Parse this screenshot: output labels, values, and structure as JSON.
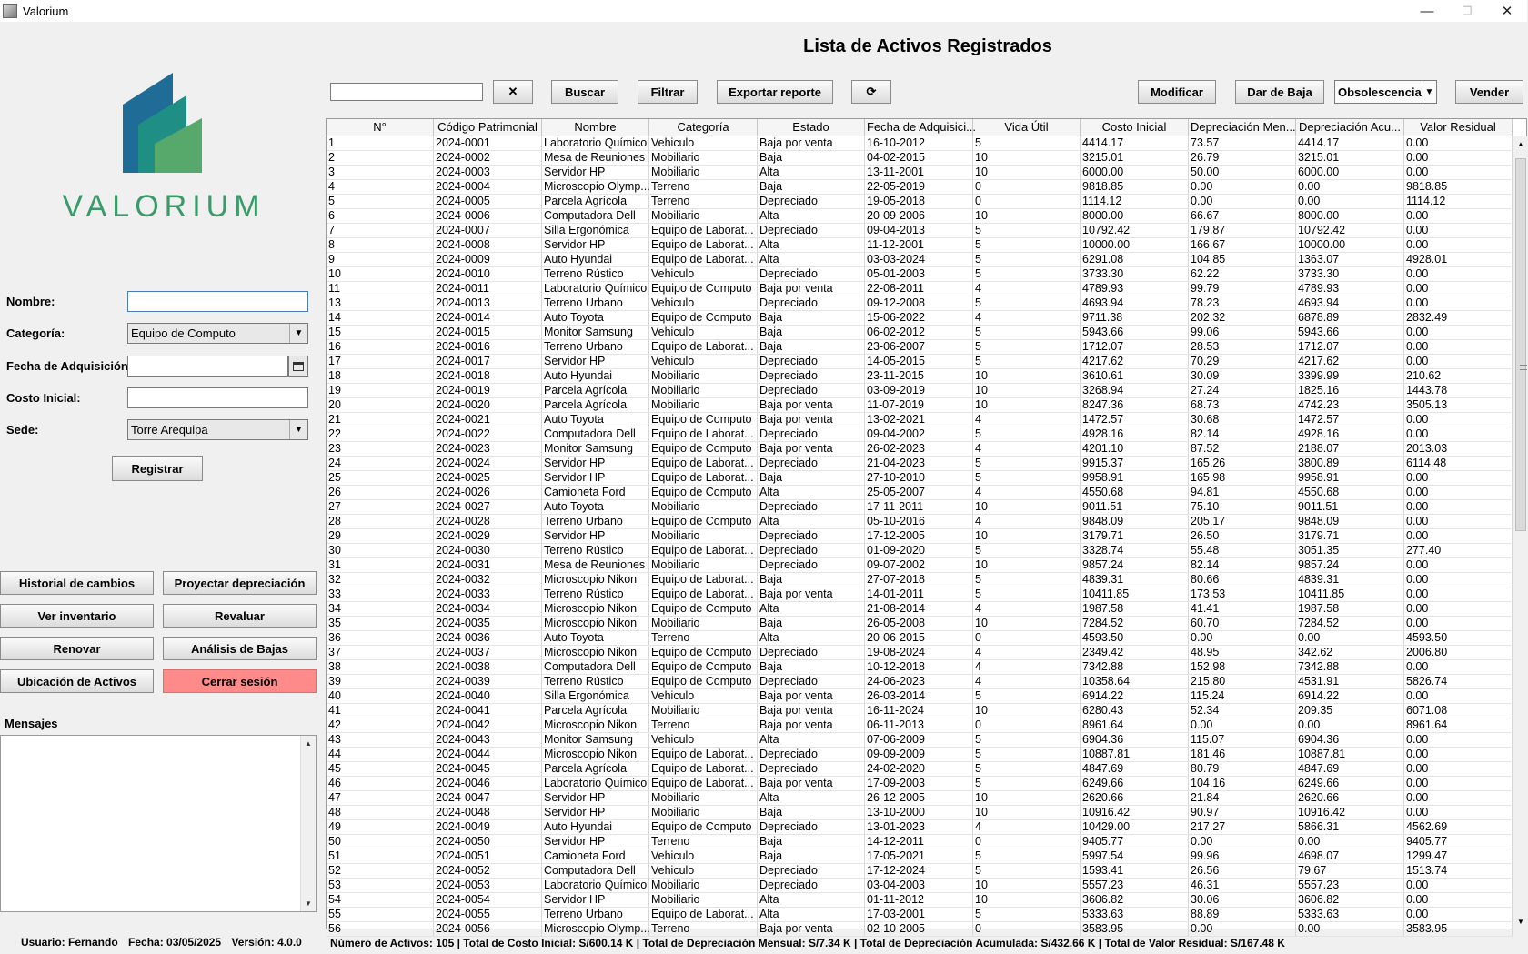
{
  "window": {
    "title": "Valorium",
    "minimize": "—",
    "maximize": "❐",
    "close": "✕"
  },
  "brand": {
    "logo_text": "VALORIUM",
    "colors": [
      "#1f6d97",
      "#1f8f86",
      "#56a86b"
    ]
  },
  "form": {
    "nombre_label": "Nombre:",
    "nombre_value": "",
    "categoria_label": "Categoría:",
    "categoria_value": "Equipo de Computo",
    "fecha_label": "Fecha de Adquisición:",
    "fecha_value": "",
    "costo_label": "Costo Inicial:",
    "costo_value": "",
    "sede_label": "Sede:",
    "sede_value": "Torre Arequipa",
    "registrar": "Registrar"
  },
  "actions": {
    "historial": "Historial de cambios",
    "proyectar": "Proyectar depreciación",
    "inventario": "Ver inventario",
    "revaluar": "Revaluar",
    "renovar": "Renovar",
    "analisis": "Análisis de Bajas",
    "ubicacion": "Ubicación de Activos",
    "cerrar": "Cerrar sesión"
  },
  "mensajes": {
    "label": "Mensajes"
  },
  "status": {
    "usuario": "Usuario: Fernando",
    "fecha": "Fecha: 03/05/2025",
    "version": "Versión: 4.0.0"
  },
  "main": {
    "title": "Lista de Activos Registrados",
    "search_value": "",
    "clear": "✕",
    "buscar": "Buscar",
    "filtrar": "Filtrar",
    "exportar": "Exportar reporte",
    "refresh": "⟳",
    "modificar": "Modificar",
    "dar_baja": "Dar de Baja",
    "baja_tipo": "Obsolescencia",
    "vender": "Vender"
  },
  "table": {
    "columns": [
      "N°",
      "Código Patrimonial",
      "Nombre",
      "Categoría",
      "Estado",
      "Fecha de Adquisici...",
      "Vida Útil",
      "Costo Inicial",
      "Depreciación Men...",
      "Depreciación Acu...",
      "Valor Residual"
    ],
    "rows": [
      [
        "1",
        "2024-0001",
        "Laboratorio Químico",
        "Vehiculo",
        "Baja por venta",
        "16-10-2012",
        "5",
        "4414.17",
        "73.57",
        "4414.17",
        "0.00"
      ],
      [
        "2",
        "2024-0002",
        "Mesa de Reuniones",
        "Mobiliario",
        "Baja",
        "04-02-2015",
        "10",
        "3215.01",
        "26.79",
        "3215.01",
        "0.00"
      ],
      [
        "3",
        "2024-0003",
        "Servidor HP",
        "Mobiliario",
        "Alta",
        "13-11-2001",
        "10",
        "6000.00",
        "50.00",
        "6000.00",
        "0.00"
      ],
      [
        "4",
        "2024-0004",
        "Microscopio Olymp...",
        "Terreno",
        "Baja",
        "22-05-2019",
        "0",
        "9818.85",
        "0.00",
        "0.00",
        "9818.85"
      ],
      [
        "5",
        "2024-0005",
        "Parcela Agrícola",
        "Terreno",
        "Depreciado",
        "19-05-2018",
        "0",
        "1114.12",
        "0.00",
        "0.00",
        "1114.12"
      ],
      [
        "6",
        "2024-0006",
        "Computadora Dell",
        "Mobiliario",
        "Alta",
        "20-09-2006",
        "10",
        "8000.00",
        "66.67",
        "8000.00",
        "0.00"
      ],
      [
        "7",
        "2024-0007",
        "Silla Ergonómica",
        "Equipo de Laborat...",
        "Depreciado",
        "09-04-2013",
        "5",
        "10792.42",
        "179.87",
        "10792.42",
        "0.00"
      ],
      [
        "8",
        "2024-0008",
        "Servidor HP",
        "Equipo de Laborat...",
        "Alta",
        "11-12-2001",
        "5",
        "10000.00",
        "166.67",
        "10000.00",
        "0.00"
      ],
      [
        "9",
        "2024-0009",
        "Auto Hyundai",
        "Equipo de Laborat...",
        "Alta",
        "03-03-2024",
        "5",
        "6291.08",
        "104.85",
        "1363.07",
        "4928.01"
      ],
      [
        "10",
        "2024-0010",
        "Terreno Rústico",
        "Vehiculo",
        "Depreciado",
        "05-01-2003",
        "5",
        "3733.30",
        "62.22",
        "3733.30",
        "0.00"
      ],
      [
        "11",
        "2024-0011",
        "Laboratorio Químico",
        "Equipo de Computo",
        "Baja por venta",
        "22-08-2011",
        "4",
        "4789.93",
        "99.79",
        "4789.93",
        "0.00"
      ],
      [
        "13",
        "2024-0013",
        "Terreno Urbano",
        "Vehiculo",
        "Depreciado",
        "09-12-2008",
        "5",
        "4693.94",
        "78.23",
        "4693.94",
        "0.00"
      ],
      [
        "14",
        "2024-0014",
        "Auto Toyota",
        "Equipo de Computo",
        "Baja",
        "15-06-2022",
        "4",
        "9711.38",
        "202.32",
        "6878.89",
        "2832.49"
      ],
      [
        "15",
        "2024-0015",
        "Monitor Samsung",
        "Vehiculo",
        "Baja",
        "06-02-2012",
        "5",
        "5943.66",
        "99.06",
        "5943.66",
        "0.00"
      ],
      [
        "16",
        "2024-0016",
        "Terreno Urbano",
        "Equipo de Laborat...",
        "Baja",
        "23-06-2007",
        "5",
        "1712.07",
        "28.53",
        "1712.07",
        "0.00"
      ],
      [
        "17",
        "2024-0017",
        "Servidor HP",
        "Vehiculo",
        "Depreciado",
        "14-05-2015",
        "5",
        "4217.62",
        "70.29",
        "4217.62",
        "0.00"
      ],
      [
        "18",
        "2024-0018",
        "Auto Hyundai",
        "Mobiliario",
        "Depreciado",
        "23-11-2015",
        "10",
        "3610.61",
        "30.09",
        "3399.99",
        "210.62"
      ],
      [
        "19",
        "2024-0019",
        "Parcela Agrícola",
        "Mobiliario",
        "Depreciado",
        "03-09-2019",
        "10",
        "3268.94",
        "27.24",
        "1825.16",
        "1443.78"
      ],
      [
        "20",
        "2024-0020",
        "Parcela Agrícola",
        "Mobiliario",
        "Baja por venta",
        "11-07-2019",
        "10",
        "8247.36",
        "68.73",
        "4742.23",
        "3505.13"
      ],
      [
        "21",
        "2024-0021",
        "Auto Toyota",
        "Equipo de Computo",
        "Baja por venta",
        "13-02-2021",
        "4",
        "1472.57",
        "30.68",
        "1472.57",
        "0.00"
      ],
      [
        "22",
        "2024-0022",
        "Computadora Dell",
        "Equipo de Laborat...",
        "Depreciado",
        "09-04-2002",
        "5",
        "4928.16",
        "82.14",
        "4928.16",
        "0.00"
      ],
      [
        "23",
        "2024-0023",
        "Monitor Samsung",
        "Equipo de Computo",
        "Baja por venta",
        "26-02-2023",
        "4",
        "4201.10",
        "87.52",
        "2188.07",
        "2013.03"
      ],
      [
        "24",
        "2024-0024",
        "Servidor HP",
        "Equipo de Laborat...",
        "Depreciado",
        "21-04-2023",
        "5",
        "9915.37",
        "165.26",
        "3800.89",
        "6114.48"
      ],
      [
        "25",
        "2024-0025",
        "Servidor HP",
        "Equipo de Laborat...",
        "Baja",
        "27-10-2010",
        "5",
        "9958.91",
        "165.98",
        "9958.91",
        "0.00"
      ],
      [
        "26",
        "2024-0026",
        "Camioneta Ford",
        "Equipo de Computo",
        "Alta",
        "25-05-2007",
        "4",
        "4550.68",
        "94.81",
        "4550.68",
        "0.00"
      ],
      [
        "27",
        "2024-0027",
        "Auto Toyota",
        "Mobiliario",
        "Depreciado",
        "17-11-2011",
        "10",
        "9011.51",
        "75.10",
        "9011.51",
        "0.00"
      ],
      [
        "28",
        "2024-0028",
        "Terreno Urbano",
        "Equipo de Computo",
        "Alta",
        "05-10-2016",
        "4",
        "9848.09",
        "205.17",
        "9848.09",
        "0.00"
      ],
      [
        "29",
        "2024-0029",
        "Servidor HP",
        "Mobiliario",
        "Depreciado",
        "17-12-2005",
        "10",
        "3179.71",
        "26.50",
        "3179.71",
        "0.00"
      ],
      [
        "30",
        "2024-0030",
        "Terreno Rústico",
        "Equipo de Laborat...",
        "Depreciado",
        "01-09-2020",
        "5",
        "3328.74",
        "55.48",
        "3051.35",
        "277.40"
      ],
      [
        "31",
        "2024-0031",
        "Mesa de Reuniones",
        "Mobiliario",
        "Depreciado",
        "09-07-2002",
        "10",
        "9857.24",
        "82.14",
        "9857.24",
        "0.00"
      ],
      [
        "32",
        "2024-0032",
        "Microscopio Nikon",
        "Equipo de Laborat...",
        "Baja",
        "27-07-2018",
        "5",
        "4839.31",
        "80.66",
        "4839.31",
        "0.00"
      ],
      [
        "33",
        "2024-0033",
        "Terreno Rústico",
        "Equipo de Laborat...",
        "Baja por venta",
        "14-01-2011",
        "5",
        "10411.85",
        "173.53",
        "10411.85",
        "0.00"
      ],
      [
        "34",
        "2024-0034",
        "Microscopio Nikon",
        "Equipo de Computo",
        "Alta",
        "21-08-2014",
        "4",
        "1987.58",
        "41.41",
        "1987.58",
        "0.00"
      ],
      [
        "35",
        "2024-0035",
        "Microscopio Nikon",
        "Mobiliario",
        "Baja",
        "26-05-2008",
        "10",
        "7284.52",
        "60.70",
        "7284.52",
        "0.00"
      ],
      [
        "36",
        "2024-0036",
        "Auto Toyota",
        "Terreno",
        "Alta",
        "20-06-2015",
        "0",
        "4593.50",
        "0.00",
        "0.00",
        "4593.50"
      ],
      [
        "37",
        "2024-0037",
        "Microscopio Nikon",
        "Equipo de Computo",
        "Depreciado",
        "19-08-2024",
        "4",
        "2349.42",
        "48.95",
        "342.62",
        "2006.80"
      ],
      [
        "38",
        "2024-0038",
        "Computadora Dell",
        "Equipo de Computo",
        "Baja",
        "10-12-2018",
        "4",
        "7342.88",
        "152.98",
        "7342.88",
        "0.00"
      ],
      [
        "39",
        "2024-0039",
        "Terreno Rústico",
        "Equipo de Computo",
        "Depreciado",
        "24-06-2023",
        "4",
        "10358.64",
        "215.80",
        "4531.91",
        "5826.74"
      ],
      [
        "40",
        "2024-0040",
        "Silla Ergonómica",
        "Vehiculo",
        "Baja por venta",
        "26-03-2014",
        "5",
        "6914.22",
        "115.24",
        "6914.22",
        "0.00"
      ],
      [
        "41",
        "2024-0041",
        "Parcela Agrícola",
        "Mobiliario",
        "Baja por venta",
        "16-11-2024",
        "10",
        "6280.43",
        "52.34",
        "209.35",
        "6071.08"
      ],
      [
        "42",
        "2024-0042",
        "Microscopio Nikon",
        "Terreno",
        "Baja por venta",
        "06-11-2013",
        "0",
        "8961.64",
        "0.00",
        "0.00",
        "8961.64"
      ],
      [
        "43",
        "2024-0043",
        "Monitor Samsung",
        "Vehiculo",
        "Alta",
        "07-06-2009",
        "5",
        "6904.36",
        "115.07",
        "6904.36",
        "0.00"
      ],
      [
        "44",
        "2024-0044",
        "Microscopio Nikon",
        "Equipo de Laborat...",
        "Depreciado",
        "09-09-2009",
        "5",
        "10887.81",
        "181.46",
        "10887.81",
        "0.00"
      ],
      [
        "45",
        "2024-0045",
        "Parcela Agrícola",
        "Equipo de Laborat...",
        "Depreciado",
        "24-02-2020",
        "5",
        "4847.69",
        "80.79",
        "4847.69",
        "0.00"
      ],
      [
        "46",
        "2024-0046",
        "Laboratorio Químico",
        "Equipo de Laborat...",
        "Baja por venta",
        "17-09-2003",
        "5",
        "6249.66",
        "104.16",
        "6249.66",
        "0.00"
      ],
      [
        "47",
        "2024-0047",
        "Servidor HP",
        "Mobiliario",
        "Alta",
        "26-12-2005",
        "10",
        "2620.66",
        "21.84",
        "2620.66",
        "0.00"
      ],
      [
        "48",
        "2024-0048",
        "Servidor HP",
        "Mobiliario",
        "Baja",
        "13-10-2000",
        "10",
        "10916.42",
        "90.97",
        "10916.42",
        "0.00"
      ],
      [
        "49",
        "2024-0049",
        "Auto Hyundai",
        "Equipo de Computo",
        "Depreciado",
        "13-01-2023",
        "4",
        "10429.00",
        "217.27",
        "5866.31",
        "4562.69"
      ],
      [
        "50",
        "2024-0050",
        "Servidor HP",
        "Terreno",
        "Baja",
        "14-12-2011",
        "0",
        "9405.77",
        "0.00",
        "0.00",
        "9405.77"
      ],
      [
        "51",
        "2024-0051",
        "Camioneta Ford",
        "Vehiculo",
        "Baja",
        "17-05-2021",
        "5",
        "5997.54",
        "99.96",
        "4698.07",
        "1299.47"
      ],
      [
        "52",
        "2024-0052",
        "Computadora Dell",
        "Vehiculo",
        "Depreciado",
        "17-12-2024",
        "5",
        "1593.41",
        "26.56",
        "79.67",
        "1513.74"
      ],
      [
        "53",
        "2024-0053",
        "Laboratorio Químico",
        "Mobiliario",
        "Depreciado",
        "03-04-2003",
        "10",
        "5557.23",
        "46.31",
        "5557.23",
        "0.00"
      ],
      [
        "54",
        "2024-0054",
        "Servidor HP",
        "Mobiliario",
        "Alta",
        "01-11-2012",
        "10",
        "3606.82",
        "30.06",
        "3606.82",
        "0.00"
      ],
      [
        "55",
        "2024-0055",
        "Terreno Urbano",
        "Equipo de Laborat...",
        "Alta",
        "17-03-2001",
        "5",
        "5333.63",
        "88.89",
        "5333.63",
        "0.00"
      ],
      [
        "56",
        "2024-0056",
        "Microscopio Olymp...",
        "Terreno",
        "Baja por venta",
        "02-10-2005",
        "0",
        "3583.95",
        "0.00",
        "0.00",
        "3583.95"
      ]
    ]
  },
  "summary": {
    "text": "Número de Activos: 105 |  Total de Costo Inicial: S/600.14 K |  Total de Depreciación Mensual: S/7.34 K |  Total de Depreciación Acumulada: S/432.66 K |  Total de Valor Residual: S/167.48 K"
  }
}
